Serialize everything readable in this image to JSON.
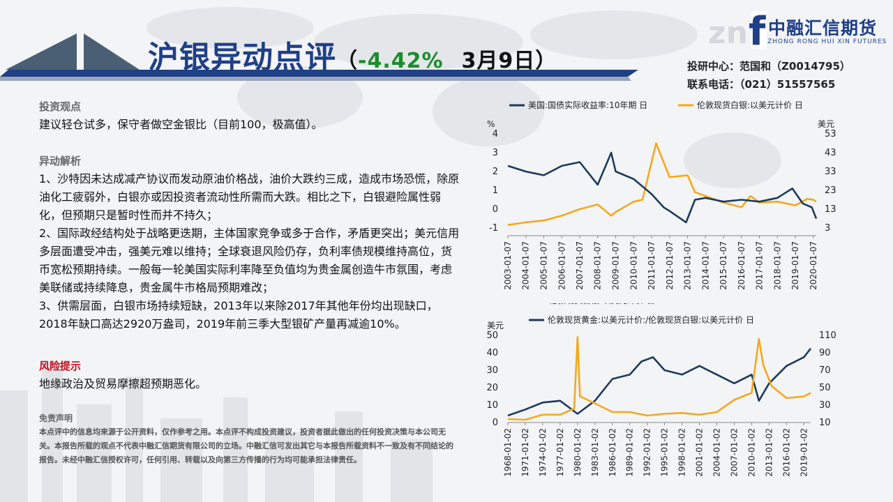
{
  "title": {
    "main": "沪银异动点评",
    "open_paren": "（",
    "change": "-4.42%",
    "date": "3月9日",
    "close_paren": "）"
  },
  "logo": {
    "mark": "f",
    "watermark": "zn",
    "name": "中融汇信期货",
    "english": "ZHONG RONG HUI XIN FUTURES"
  },
  "contact": {
    "research": "投研中心：范国和（Z0014795）",
    "phone": "联系电话：（021）51557565"
  },
  "sections": {
    "view_title": "投资观点",
    "view_text": "建议轻仓试多，保守者做空金银比（目前100，极高值）。",
    "analysis_title": "异动解析",
    "analysis_p1": "1、沙特因未达成减产协议而发动原油价格战，油价大跌约三成，造成市场恐慌，除原油化工疲弱外，白银亦或因投资者流动性所需而大跌。相比之下，白银避险属性弱化，但预期只是暂时性而并不持久；",
    "analysis_p2": "2、国际政经结构处于战略更迭期，主体国家竞争或多于合作，矛盾更突出；美元信用多层面遭受冲击，强美元难以维持；全球衰退风险仍存，负利率债规模维持高位，货币宽松预期持续。一般每一轮美国实际利率降至负值均为贵金属创造牛市氛围，考虑美联储或持续降息，贵金属牛市格局预期难改；",
    "analysis_p3": "3、供需层面，白银市场持续短缺，2013年以来除2017年其他年份均出现缺口，2018年缺口高达2920万盎司，2019年前三季大型银矿产量再减逾10%。",
    "risk_title": "风险提示",
    "risk_text": "地缘政治及贸易摩擦超预期恶化。"
  },
  "disclaimer": {
    "title": "免责声明",
    "text": "本点评中的信息均来源于公开资料，仅作参考之用。本点评不构成投资建议，投资者据此做出的任何投资决策与本公司无关。本报告所载的观点不代表中融汇信期货有限公司的立场。中融汇信可发出其它与本报告所载资料不一致及有不同结论的报告。未经中融汇信授权许可，任何引用、转载以及向第三方传播的行为均可能承担法律责任。"
  },
  "colors": {
    "navy": "#1f3f87",
    "series_dark": "#1b3a5c",
    "series_orange": "#f5a81c",
    "green": "#1d8c2e",
    "risk_red": "#c0111f"
  },
  "chart_data": [
    {
      "type": "line",
      "title": "",
      "left_unit": "%",
      "right_unit": "美元",
      "series": [
        {
          "name": "美国:国债实际收益率:10年期 日",
          "axis": "left",
          "x": [
            "2003-01-07",
            "2004-01-07",
            "2005-01-07",
            "2006-01-07",
            "2007-01-07",
            "2008-01-07",
            "2008-10-07",
            "2009-01-07",
            "2010-01-07",
            "2011-01-07",
            "2011-09-07",
            "2012-01-07",
            "2012-12-07",
            "2013-06-07",
            "2014-01-07",
            "2015-01-07",
            "2016-01-07",
            "2017-01-07",
            "2018-01-07",
            "2018-11-07",
            "2019-06-07",
            "2019-12-07",
            "2020-03-07"
          ],
          "values": [
            2.3,
            2.0,
            1.8,
            2.3,
            2.5,
            1.3,
            3.0,
            2.0,
            1.6,
            0.8,
            0.1,
            -0.1,
            -0.7,
            0.5,
            0.6,
            0.4,
            0.5,
            0.4,
            0.6,
            1.1,
            0.3,
            0.1,
            -0.5
          ]
        },
        {
          "name": "伦敦现货白银:以美元计价 日",
          "axis": "right",
          "x": [
            "2003-01-07",
            "2004-01-07",
            "2005-01-07",
            "2006-01-07",
            "2007-01-07",
            "2008-01-07",
            "2008-10-07",
            "2009-01-07",
            "2010-01-07",
            "2010-07-07",
            "2011-04-07",
            "2011-09-07",
            "2012-01-07",
            "2013-01-07",
            "2013-06-07",
            "2014-01-07",
            "2015-01-07",
            "2016-01-07",
            "2016-07-07",
            "2017-01-07",
            "2018-01-07",
            "2019-01-07",
            "2019-09-07",
            "2020-01-07",
            "2020-03-07"
          ],
          "values": [
            4.6,
            6.0,
            7.0,
            9.5,
            13.0,
            15.5,
            9.5,
            11.5,
            17.0,
            18.0,
            48.0,
            38.0,
            30.0,
            31.0,
            22.0,
            20.0,
            16.5,
            14.0,
            20.0,
            16.5,
            17.0,
            15.0,
            18.5,
            18.0,
            17.0
          ]
        }
      ],
      "x_ticks": [
        "2003-01-07",
        "2004-01-07",
        "2005-01-07",
        "2006-01-07",
        "2007-01-07",
        "2008-01-07",
        "2009-01-07",
        "2010-01-07",
        "2011-01-07",
        "2012-01-07",
        "2013-01-07",
        "2014-01-07",
        "2015-01-07",
        "2016-01-07",
        "2017-01-07",
        "2018-01-07",
        "2019-01-07",
        "2020-01-07"
      ],
      "left_ticks": [
        "4",
        "3",
        "2",
        "1",
        "0",
        "-1"
      ],
      "right_ticks": [
        "53",
        "43",
        "33",
        "23",
        "13",
        "3"
      ],
      "ylim_left": [
        -1,
        4
      ],
      "ylim_right": [
        3,
        53
      ],
      "legend": "top"
    },
    {
      "type": "line",
      "title": "",
      "left_unit": "美元",
      "series": [
        {
          "name": "伦敦现货白银:以美元计价 日",
          "axis": "left",
          "x": [
            "1968-01-02",
            "1971-01-02",
            "1974-01-02",
            "1977-01-02",
            "1979-06-02",
            "1980-01-02",
            "1980-06-02",
            "1983-01-02",
            "1986-01-02",
            "1989-01-02",
            "1992-01-02",
            "1995-01-02",
            "1998-01-02",
            "2001-01-02",
            "2004-01-02",
            "2007-01-02",
            "2010-01-02",
            "2011-04-02",
            "2012-01-02",
            "2013-06-02",
            "2016-01-02",
            "2019-01-02",
            "2020-03-02"
          ],
          "values": [
            2.0,
            1.6,
            4.5,
            4.5,
            8.0,
            49.0,
            15.0,
            11.0,
            6.0,
            6.0,
            4.0,
            5.0,
            5.5,
            4.5,
            6.0,
            13.0,
            17.0,
            48.0,
            33.0,
            21.0,
            14.0,
            15.0,
            17.0
          ]
        },
        {
          "name": "伦敦现货黄金:以美元计价:/伦敦现货白银:以美元计价 日",
          "axis": "right",
          "x": [
            "1968-01-02",
            "1971-01-02",
            "1974-01-02",
            "1977-01-02",
            "1980-01-02",
            "1983-01-02",
            "1986-01-02",
            "1989-01-02",
            "1991-01-02",
            "1993-01-02",
            "1995-01-02",
            "1998-01-02",
            "2001-01-02",
            "2004-01-02",
            "2007-01-02",
            "2010-01-02",
            "2011-04-02",
            "2013-01-02",
            "2016-01-02",
            "2019-01-02",
            "2020-03-02"
          ],
          "values": [
            18,
            25,
            33,
            35,
            20,
            35,
            60,
            65,
            80,
            85,
            70,
            65,
            75,
            65,
            55,
            65,
            35,
            55,
            75,
            85,
            95
          ]
        }
      ],
      "x_ticks": [
        "1968-01-02",
        "1971-01-02",
        "1974-01-02",
        "1977-01-02",
        "1980-01-02",
        "1983-01-02",
        "1986-01-02",
        "1989-01-02",
        "1992-01-02",
        "1995-01-02",
        "1998-01-02",
        "2001-01-02",
        "2004-01-02",
        "2007-01-02",
        "2010-01-02",
        "2013-01-02",
        "2016-01-02",
        "2019-01-02"
      ],
      "left_ticks": [
        "50",
        "40",
        "30",
        "20",
        "10",
        "0"
      ],
      "right_ticks": [
        "110",
        "90",
        "70",
        "50",
        "30",
        "10"
      ],
      "ylim_left": [
        0,
        50
      ],
      "ylim_right": [
        10,
        110
      ],
      "legend": "top"
    }
  ]
}
